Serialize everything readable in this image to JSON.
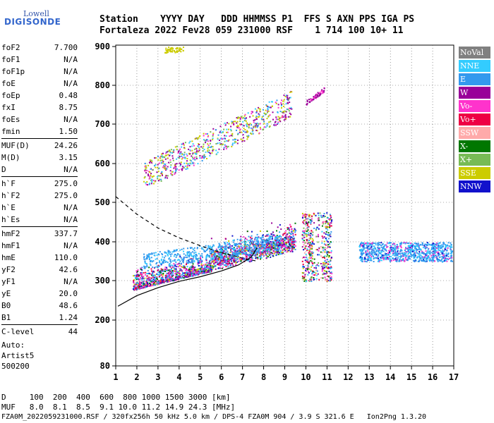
{
  "logo": {
    "top": "Lowell",
    "main": "DIGISONDE"
  },
  "header": {
    "line1": "Station    YYYY DAY   DDD HHMMSS P1  FFS S AXN PPS IGA PS",
    "line2": "Fortaleza 2022 Fev28 059 231000 RSF    1 714 100 10+ 11"
  },
  "parameters": [
    {
      "label": "foF2",
      "value": "7.700"
    },
    {
      "label": "foF1",
      "value": "N/A"
    },
    {
      "label": "foF1p",
      "value": "N/A"
    },
    {
      "label": "foE",
      "value": "N/A"
    },
    {
      "label": "foEp",
      "value": "0.48"
    },
    {
      "label": "fxI",
      "value": "8.75"
    },
    {
      "label": "foEs",
      "value": "N/A"
    },
    {
      "label": "fmin",
      "value": "1.50"
    },
    {
      "label": "MUF(D)",
      "value": "24.26"
    },
    {
      "label": "M(D)",
      "value": "3.15"
    },
    {
      "label": "D",
      "value": "N/A"
    },
    {
      "label": "h`F",
      "value": "275.0"
    },
    {
      "label": "h`F2",
      "value": "275.0"
    },
    {
      "label": "h`E",
      "value": "N/A"
    },
    {
      "label": "h`Es",
      "value": "N/A"
    },
    {
      "label": "hmF2",
      "value": "337.7"
    },
    {
      "label": "hmF1",
      "value": "N/A"
    },
    {
      "label": "hmE",
      "value": "110.0"
    },
    {
      "label": "yF2",
      "value": "42.6"
    },
    {
      "label": "yF1",
      "value": "N/A"
    },
    {
      "label": "yE",
      "value": "20.0"
    },
    {
      "label": "B0",
      "value": "48.6"
    },
    {
      "label": "B1",
      "value": "1.24"
    },
    {
      "label": "C-level",
      "value": "44"
    }
  ],
  "auto": [
    "Auto:",
    "Artist5",
    "500200"
  ],
  "legend": [
    {
      "label": "NoVal",
      "color": "#808080"
    },
    {
      "label": "NNE",
      "color": "#33ccff"
    },
    {
      "label": "E",
      "color": "#3399ee"
    },
    {
      "label": "W",
      "color": "#990099"
    },
    {
      "label": "Vo-",
      "color": "#ff33cc"
    },
    {
      "label": "Vo+",
      "color": "#ee0044"
    },
    {
      "label": "SSW",
      "color": "#ffaaaa"
    },
    {
      "label": "X-",
      "color": "#007700"
    },
    {
      "label": "X+",
      "color": "#77bb55"
    },
    {
      "label": "SSE",
      "color": "#cccc00"
    },
    {
      "label": "NNW",
      "color": "#1111cc"
    }
  ],
  "footer": {
    "line1": "D     100  200  400  600  800 1000 1500 3000 [km]",
    "line2": "MUF   8.0  8.1  8.5  9.1 10.0 11.2 14.9 24.3 [MHz]",
    "line3": "FZA0M_2022059231000.RSF / 320fx256h 50 kHz 5.0 km / DPS-4 FZA0M 904 / 3.9 S 321.6 E   Ion2Png 1.3.20"
  },
  "chart_data": {
    "type": "scatter",
    "xlim": [
      1,
      17
    ],
    "ylim": [
      80,
      900
    ],
    "x_ticks": [
      1,
      2,
      3,
      4,
      5,
      6,
      7,
      8,
      9,
      10,
      11,
      12,
      13,
      14,
      15,
      16,
      17
    ],
    "y_ticks": [
      80,
      200,
      300,
      400,
      500,
      600,
      700,
      800,
      900
    ],
    "grid": true,
    "clusters": [
      {
        "name": "F-layer O-mode trace",
        "color_key": "mixed",
        "x_range": [
          1.8,
          9.5
        ],
        "y_start": [
          1.8,
          285
        ],
        "y_end": [
          9.5,
          385
        ]
      },
      {
        "name": "Spread F",
        "color_key": "mixed",
        "x_range": [
          9.8,
          11.2
        ],
        "y_range": [
          300,
          480
        ]
      },
      {
        "name": "Spread F high freq",
        "color_key": "E",
        "x_range": [
          12.5,
          16.9
        ],
        "y_range": [
          350,
          400
        ]
      },
      {
        "name": "Multiple hop echoes",
        "color_key": "mixed",
        "x_range": [
          2.3,
          9.3
        ],
        "y_start": [
          2.3,
          555
        ],
        "y_end": [
          9.3,
          735
        ]
      },
      {
        "name": "Top echoes",
        "color_key": "W",
        "x_range": [
          10.0,
          10.9
        ],
        "y_range": [
          750,
          790
        ]
      }
    ],
    "profile_solid": [
      [
        1.1,
        235
      ],
      [
        2.0,
        262
      ],
      [
        3.0,
        282
      ],
      [
        4.0,
        298
      ],
      [
        5.0,
        310
      ],
      [
        6.0,
        325
      ],
      [
        6.8,
        340
      ],
      [
        7.4,
        360
      ],
      [
        7.7,
        385
      ]
    ],
    "profile_dashed": [
      [
        1.0,
        515
      ],
      [
        2.0,
        470
      ],
      [
        3.0,
        435
      ],
      [
        4.0,
        410
      ],
      [
        5.0,
        390
      ],
      [
        6.0,
        372
      ],
      [
        7.0,
        358
      ],
      [
        7.7,
        350
      ]
    ]
  }
}
